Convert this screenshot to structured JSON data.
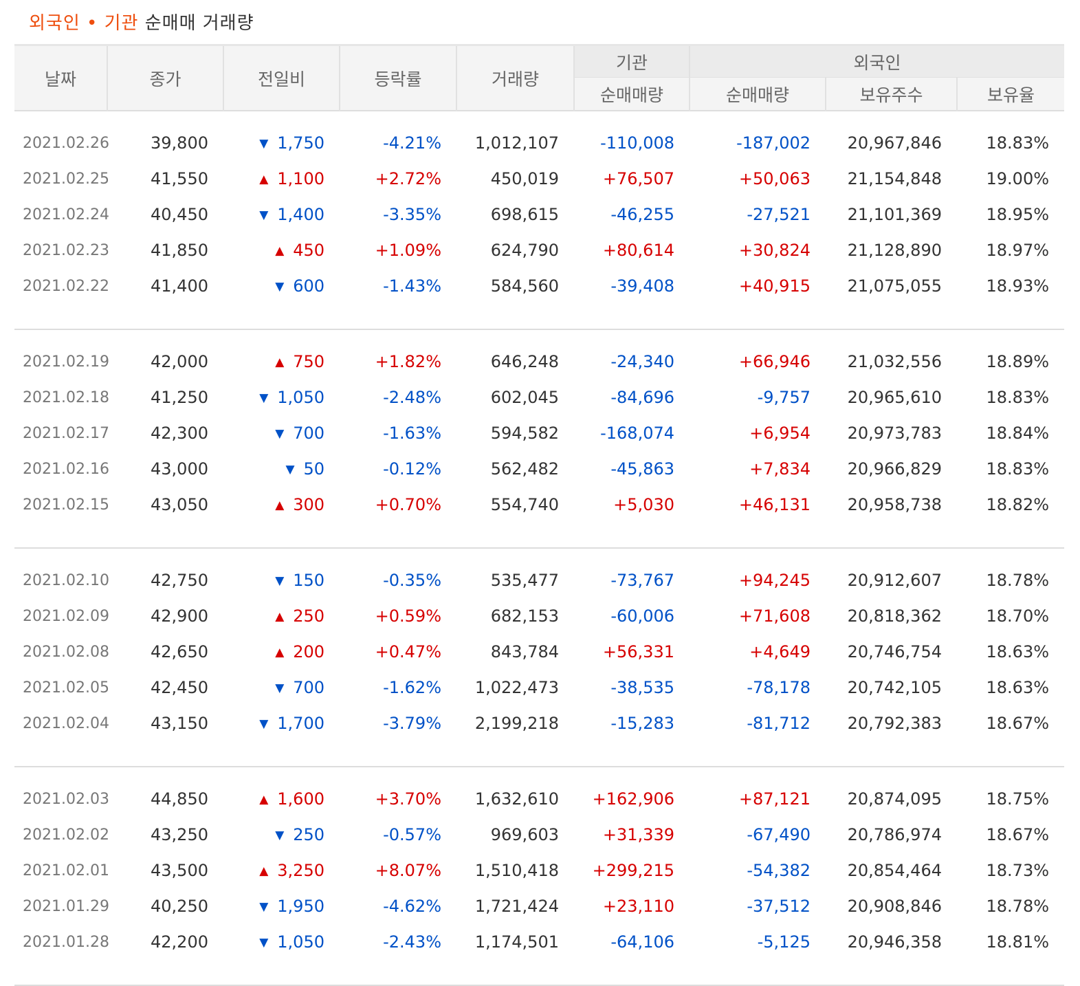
{
  "title": {
    "highlight": "외국인 • 기관",
    "rest": "순매매 거래량"
  },
  "colors": {
    "up": "#d60000",
    "down": "#0051c7",
    "title_accent": "#ee4e0e"
  },
  "headers": {
    "date": "날짜",
    "close": "종가",
    "change": "전일비",
    "rate": "등락률",
    "volume": "거래량",
    "institution": "기관",
    "foreign": "외국인",
    "inst_net": "순매매량",
    "foreign_net": "순매매량",
    "holdings": "보유주수",
    "ratio": "보유율"
  },
  "groups": [
    {
      "rows": [
        {
          "date": "2021.02.26",
          "close": "39,800",
          "dir": "down",
          "change": "1,750",
          "rate": "-4.21%",
          "volume": "1,012,107",
          "inst": "-110,008",
          "foreign": "-187,002",
          "holdings": "20,967,846",
          "ratio": "18.83%"
        },
        {
          "date": "2021.02.25",
          "close": "41,550",
          "dir": "up",
          "change": "1,100",
          "rate": "+2.72%",
          "volume": "450,019",
          "inst": "+76,507",
          "foreign": "+50,063",
          "holdings": "21,154,848",
          "ratio": "19.00%"
        },
        {
          "date": "2021.02.24",
          "close": "40,450",
          "dir": "down",
          "change": "1,400",
          "rate": "-3.35%",
          "volume": "698,615",
          "inst": "-46,255",
          "foreign": "-27,521",
          "holdings": "21,101,369",
          "ratio": "18.95%"
        },
        {
          "date": "2021.02.23",
          "close": "41,850",
          "dir": "up",
          "change": "450",
          "rate": "+1.09%",
          "volume": "624,790",
          "inst": "+80,614",
          "foreign": "+30,824",
          "holdings": "21,128,890",
          "ratio": "18.97%"
        },
        {
          "date": "2021.02.22",
          "close": "41,400",
          "dir": "down",
          "change": "600",
          "rate": "-1.43%",
          "volume": "584,560",
          "inst": "-39,408",
          "foreign": "+40,915",
          "holdings": "21,075,055",
          "ratio": "18.93%"
        }
      ]
    },
    {
      "rows": [
        {
          "date": "2021.02.19",
          "close": "42,000",
          "dir": "up",
          "change": "750",
          "rate": "+1.82%",
          "volume": "646,248",
          "inst": "-24,340",
          "foreign": "+66,946",
          "holdings": "21,032,556",
          "ratio": "18.89%"
        },
        {
          "date": "2021.02.18",
          "close": "41,250",
          "dir": "down",
          "change": "1,050",
          "rate": "-2.48%",
          "volume": "602,045",
          "inst": "-84,696",
          "foreign": "-9,757",
          "holdings": "20,965,610",
          "ratio": "18.83%"
        },
        {
          "date": "2021.02.17",
          "close": "42,300",
          "dir": "down",
          "change": "700",
          "rate": "-1.63%",
          "volume": "594,582",
          "inst": "-168,074",
          "foreign": "+6,954",
          "holdings": "20,973,783",
          "ratio": "18.84%"
        },
        {
          "date": "2021.02.16",
          "close": "43,000",
          "dir": "down",
          "change": "50",
          "rate": "-0.12%",
          "volume": "562,482",
          "inst": "-45,863",
          "foreign": "+7,834",
          "holdings": "20,966,829",
          "ratio": "18.83%"
        },
        {
          "date": "2021.02.15",
          "close": "43,050",
          "dir": "up",
          "change": "300",
          "rate": "+0.70%",
          "volume": "554,740",
          "inst": "+5,030",
          "foreign": "+46,131",
          "holdings": "20,958,738",
          "ratio": "18.82%"
        }
      ]
    },
    {
      "rows": [
        {
          "date": "2021.02.10",
          "close": "42,750",
          "dir": "down",
          "change": "150",
          "rate": "-0.35%",
          "volume": "535,477",
          "inst": "-73,767",
          "foreign": "+94,245",
          "holdings": "20,912,607",
          "ratio": "18.78%"
        },
        {
          "date": "2021.02.09",
          "close": "42,900",
          "dir": "up",
          "change": "250",
          "rate": "+0.59%",
          "volume": "682,153",
          "inst": "-60,006",
          "foreign": "+71,608",
          "holdings": "20,818,362",
          "ratio": "18.70%"
        },
        {
          "date": "2021.02.08",
          "close": "42,650",
          "dir": "up",
          "change": "200",
          "rate": "+0.47%",
          "volume": "843,784",
          "inst": "+56,331",
          "foreign": "+4,649",
          "holdings": "20,746,754",
          "ratio": "18.63%"
        },
        {
          "date": "2021.02.05",
          "close": "42,450",
          "dir": "down",
          "change": "700",
          "rate": "-1.62%",
          "volume": "1,022,473",
          "inst": "-38,535",
          "foreign": "-78,178",
          "holdings": "20,742,105",
          "ratio": "18.63%"
        },
        {
          "date": "2021.02.04",
          "close": "43,150",
          "dir": "down",
          "change": "1,700",
          "rate": "-3.79%",
          "volume": "2,199,218",
          "inst": "-15,283",
          "foreign": "-81,712",
          "holdings": "20,792,383",
          "ratio": "18.67%"
        }
      ]
    },
    {
      "rows": [
        {
          "date": "2021.02.03",
          "close": "44,850",
          "dir": "up",
          "change": "1,600",
          "rate": "+3.70%",
          "volume": "1,632,610",
          "inst": "+162,906",
          "foreign": "+87,121",
          "holdings": "20,874,095",
          "ratio": "18.75%"
        },
        {
          "date": "2021.02.02",
          "close": "43,250",
          "dir": "down",
          "change": "250",
          "rate": "-0.57%",
          "volume": "969,603",
          "inst": "+31,339",
          "foreign": "-67,490",
          "holdings": "20,786,974",
          "ratio": "18.67%"
        },
        {
          "date": "2021.02.01",
          "close": "43,500",
          "dir": "up",
          "change": "3,250",
          "rate": "+8.07%",
          "volume": "1,510,418",
          "inst": "+299,215",
          "foreign": "-54,382",
          "holdings": "20,854,464",
          "ratio": "18.73%"
        },
        {
          "date": "2021.01.29",
          "close": "40,250",
          "dir": "down",
          "change": "1,950",
          "rate": "-4.62%",
          "volume": "1,721,424",
          "inst": "+23,110",
          "foreign": "-37,512",
          "holdings": "20,908,846",
          "ratio": "18.78%"
        },
        {
          "date": "2021.01.28",
          "close": "42,200",
          "dir": "down",
          "change": "1,050",
          "rate": "-2.43%",
          "volume": "1,174,501",
          "inst": "-64,106",
          "foreign": "-5,125",
          "holdings": "20,946,358",
          "ratio": "18.81%"
        }
      ]
    }
  ]
}
